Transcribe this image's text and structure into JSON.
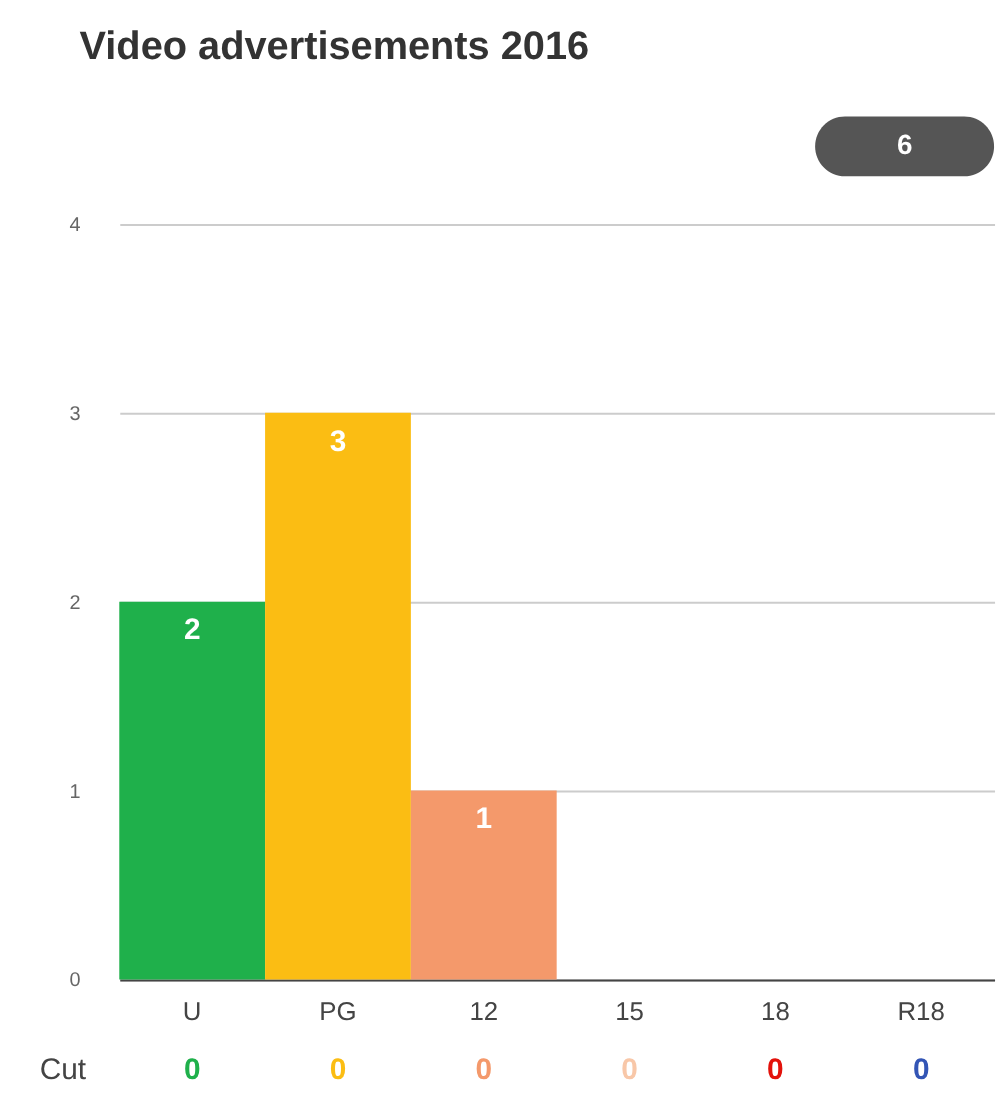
{
  "chart_data": {
    "type": "bar",
    "title": "Video advertisements 2016",
    "categories": [
      "U",
      "PG",
      "12",
      "15",
      "18",
      "R18"
    ],
    "values": [
      2,
      3,
      1,
      0,
      0,
      0
    ],
    "colors": [
      "#1fb04b",
      "#fbbd13",
      "#f4996b",
      "#f8c7a8",
      "#e3120b",
      "#3355b5"
    ],
    "value_labels": [
      "2",
      "3",
      "1",
      null,
      null,
      null
    ],
    "ylim": [
      0,
      4
    ],
    "yticks": [
      0,
      1,
      2,
      3,
      4
    ],
    "grid": "y",
    "annotations": [
      "6",
      "Cut",
      "0",
      "0",
      "0",
      "0",
      "0",
      "0"
    ]
  }
}
